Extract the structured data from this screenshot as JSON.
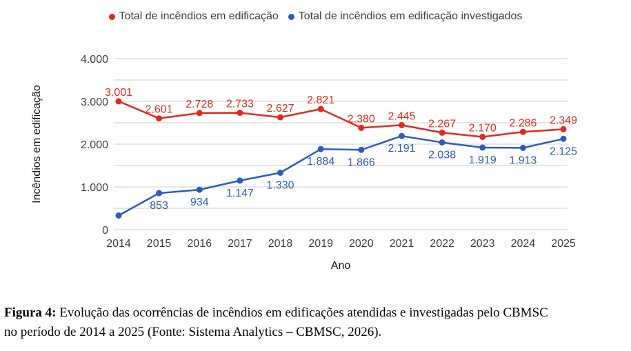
{
  "chart_data": {
    "type": "line",
    "x": [
      "2014",
      "2015",
      "2016",
      "2017",
      "2018",
      "2019",
      "2020",
      "2021",
      "2022",
      "2023",
      "2024",
      "2025"
    ],
    "series": [
      {
        "name": "Total de incêndios em edificação",
        "color": "#e02a20",
        "values": [
          3001,
          2601,
          2728,
          2733,
          2627,
          2821,
          2380,
          2445,
          2267,
          2170,
          2286,
          2349
        ],
        "labels": [
          "3.001",
          "2.601",
          "2.728",
          "2.733",
          "2.627",
          "2.821",
          "2.380",
          "2.445",
          "2.267",
          "2.170",
          "2.286",
          "2.349"
        ]
      },
      {
        "name": "Total de incêndios em edificação investigados",
        "color": "#2d5cb8",
        "values": [
          330,
          853,
          934,
          1147,
          1330,
          1884,
          1866,
          2191,
          2038,
          1919,
          1913,
          2125
        ],
        "labels": [
          "",
          "853",
          "934",
          "1.147",
          "1.330",
          "1.884",
          "1.866",
          "2.191",
          "2.038",
          "1.919",
          "1.913",
          "2.125"
        ]
      }
    ],
    "title": "",
    "xlabel": "Ano",
    "ylabel": "Incêndios em edificação",
    "ylim": [
      0,
      4000
    ],
    "ytick_step": 1000,
    "ytick_labels": [
      "0",
      "1.000",
      "2.000",
      "3.000",
      "4.000"
    ],
    "grid": true,
    "grid_step": 500,
    "grid_color": "#e6e6e6",
    "legend_position": "top"
  },
  "caption": {
    "bold": "Figura 4:",
    "line1_rest": " Evolução das ocorrências de incêndios em edificações atendidas e investigadas pelo CBMSC",
    "line2": "no período de 2014 a 2025 (Fonte: Sistema Analytics – CBMSC, 2026)."
  }
}
